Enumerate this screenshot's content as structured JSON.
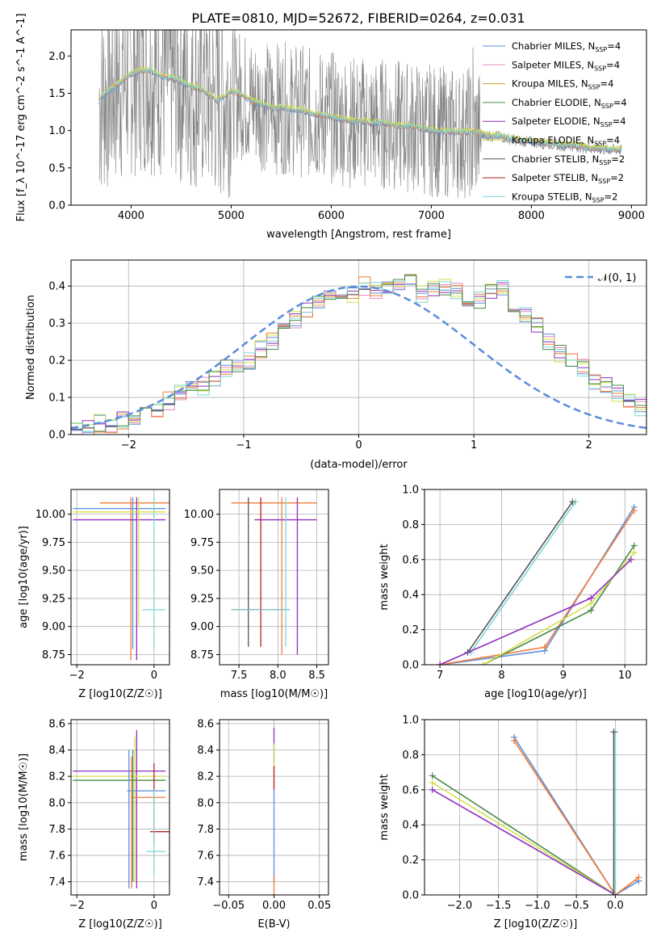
{
  "title": "PLATE=0810, MJD=52672, FIBERID=0264, z=0.031",
  "colors": {
    "Chabrier MILES": "#5b8ddb",
    "Salpeter MILES": "#e88ac0",
    "Kroupa MILES": "#c9a227",
    "Chabrier ELODIE": "#4a8a4a",
    "Salpeter ELODIE": "#8e2fbf",
    "Kroupa ELODIE": "#d4e04a",
    "Chabrier STELIB": "#555555",
    "Salpeter STELIB": "#b22222",
    "Kroupa STELIB": "#7fd6d6",
    "orange_overlay": "#f07c38",
    "data": "#808080",
    "gaussian": "#5b8ddb"
  },
  "chart_data": [
    {
      "id": "spectrum",
      "type": "line",
      "title": "PLATE=0810, MJD=52672, FIBERID=0264, z=0.031",
      "xlabel": "wavelength [Angstrom, rest frame]",
      "ylabel": "Flux [f_λ 10^-17 erg cm^-2 s^-1 A^-1]",
      "xlim": [
        3400,
        9150
      ],
      "ylim": [
        0,
        2.35
      ],
      "xticks": [
        4000,
        5000,
        6000,
        7000,
        8000,
        9000
      ],
      "yticks": [
        0.0,
        0.5,
        1.0,
        1.5,
        2.0
      ],
      "legend_position": "top-right",
      "legend": [
        {
          "label": "Chabrier MILES, N",
          "sub": "SSP",
          "tail": "=4",
          "color_key": "Chabrier MILES"
        },
        {
          "label": "Salpeter MILES, N",
          "sub": "SSP",
          "tail": "=4",
          "color_key": "Salpeter MILES"
        },
        {
          "label": "Kroupa MILES, N",
          "sub": "SSP",
          "tail": "=4",
          "color_key": "Kroupa MILES"
        },
        {
          "label": "Chabrier ELODIE, N",
          "sub": "SSP",
          "tail": "=4",
          "color_key": "Chabrier ELODIE"
        },
        {
          "label": "Salpeter ELODIE, N",
          "sub": "SSP",
          "tail": "=4",
          "color_key": "Salpeter ELODIE"
        },
        {
          "label": "Kroupa ELODIE, N",
          "sub": "SSP",
          "tail": "=4",
          "color_key": "Kroupa ELODIE"
        },
        {
          "label": "Chabrier STELIB, N",
          "sub": "SSP",
          "tail": "=2",
          "color_key": "Chabrier STELIB"
        },
        {
          "label": "Salpeter STELIB, N",
          "sub": "SSP",
          "tail": "=2",
          "color_key": "Salpeter STELIB"
        },
        {
          "label": "Kroupa STELIB, N",
          "sub": "SSP",
          "tail": "=2",
          "color_key": "Kroupa STELIB"
        }
      ],
      "model_continuum": {
        "x": [
          3680,
          3700,
          3800,
          3900,
          4000,
          4100,
          4200,
          4300,
          4400,
          4500,
          4600,
          4700,
          4800,
          4860,
          4900,
          5000,
          5100,
          5200,
          5300,
          5400,
          5500,
          5600,
          5700,
          5800,
          5900,
          6000,
          6100,
          6200,
          6300,
          6400,
          6500,
          6600,
          6700,
          6800,
          6900,
          7000,
          7100,
          7200,
          7300,
          7400,
          7500,
          7600,
          7700,
          7800,
          7900,
          8000,
          8100,
          8200,
          8300,
          8400,
          8500,
          8600,
          8700,
          8800,
          8900
        ],
        "y": [
          1.38,
          1.45,
          1.55,
          1.65,
          1.75,
          1.8,
          1.8,
          1.72,
          1.7,
          1.65,
          1.58,
          1.55,
          1.45,
          1.4,
          1.42,
          1.52,
          1.48,
          1.4,
          1.35,
          1.3,
          1.3,
          1.28,
          1.27,
          1.22,
          1.2,
          1.18,
          1.15,
          1.12,
          1.12,
          1.1,
          1.1,
          1.07,
          1.05,
          1.06,
          1.02,
          1.0,
          0.98,
          0.98,
          0.97,
          0.98,
          0.95,
          0.92,
          0.92,
          0.88,
          0.86,
          0.85,
          0.83,
          0.82,
          0.8,
          0.8,
          0.78,
          0.76,
          0.75,
          0.74,
          0.74
        ]
      }
    },
    {
      "id": "residuals",
      "type": "line",
      "xlabel": "(data-model)/error",
      "ylabel": "Normed distribution",
      "xlim": [
        -2.5,
        2.5
      ],
      "ylim": [
        0,
        0.47
      ],
      "xticks": [
        -2,
        -1,
        0,
        1,
        2
      ],
      "yticks": [
        0.0,
        0.1,
        0.2,
        0.3,
        0.4
      ],
      "legend_position": "top-right",
      "legend": [
        {
          "label": "𝒩(0, 1)",
          "color_key": "gaussian"
        }
      ],
      "bin_width": 0.1,
      "histogram_base": [
        0.02,
        0.02,
        0.03,
        0.03,
        0.04,
        0.04,
        0.05,
        0.07,
        0.09,
        0.11,
        0.12,
        0.13,
        0.15,
        0.18,
        0.19,
        0.2,
        0.23,
        0.25,
        0.28,
        0.31,
        0.33,
        0.35,
        0.37,
        0.37,
        0.38,
        0.4,
        0.39,
        0.4,
        0.41,
        0.42,
        0.38,
        0.39,
        0.4,
        0.39,
        0.37,
        0.36,
        0.39,
        0.4,
        0.34,
        0.32,
        0.29,
        0.25,
        0.22,
        0.2,
        0.18,
        0.14,
        0.13,
        0.11,
        0.09,
        0.07,
        0.05
      ]
    },
    {
      "id": "age-vs-Z",
      "type": "scatter",
      "xlabel": "Z [log10(Z/Z☉)]",
      "ylabel": "age  [log10(age/yr)]",
      "xlim": [
        -2.15,
        0.4
      ],
      "ylim": [
        8.66,
        10.22
      ],
      "xticks": [
        -2,
        0
      ],
      "yticks": [
        8.75,
        9.0,
        9.25,
        9.5,
        9.75,
        10.0
      ],
      "points": [
        {
          "color_key": "orange_overlay",
          "x": [
            -1.4,
            0.4
          ],
          "y": [
            10.1,
            10.1
          ],
          "vx": -0.6,
          "vy": [
            8.7,
            10.15
          ]
        },
        {
          "color_key": "Chabrier MILES",
          "x": [
            -2.1,
            0.3
          ],
          "y": [
            10.05,
            10.05
          ],
          "vx": -0.55,
          "vy": [
            8.8,
            10.15
          ]
        },
        {
          "color_key": "Salpeter ELODIE",
          "x": [
            -2.1,
            0.3
          ],
          "y": [
            9.95,
            9.95
          ],
          "vx": -0.45,
          "vy": [
            8.7,
            10.15
          ]
        },
        {
          "color_key": "Kroupa ELODIE",
          "x": [
            -2.1,
            0.3
          ],
          "y": [
            10.02,
            10.02
          ],
          "vx": -0.4,
          "vy": [
            9.0,
            10.15
          ]
        },
        {
          "color_key": "Kroupa STELIB",
          "x": [
            -0.3,
            0.3
          ],
          "y": [
            9.15,
            9.15
          ],
          "vx": 0.0,
          "vy": [
            8.8,
            10.15
          ]
        }
      ]
    },
    {
      "id": "age-vs-mass",
      "type": "scatter",
      "xlabel": "mass [log10(M/M☉)]",
      "ylabel": "",
      "xlim": [
        7.25,
        8.65
      ],
      "ylim": [
        8.66,
        10.22
      ],
      "xticks": [
        7.5,
        8.0,
        8.5
      ],
      "yticks": [
        8.75,
        9.0,
        9.25,
        9.5,
        9.75,
        10.0
      ],
      "points": [
        {
          "color_key": "orange_overlay",
          "x": [
            7.4,
            8.5
          ],
          "y": [
            10.1,
            10.1
          ],
          "vx": 8.05,
          "vy": [
            8.75,
            10.15
          ]
        },
        {
          "color_key": "Salpeter ELODIE",
          "x": [
            7.7,
            8.5
          ],
          "y": [
            9.95,
            9.95
          ],
          "vx": 8.25,
          "vy": [
            8.75,
            10.15
          ]
        },
        {
          "color_key": "Chabrier STELIB",
          "x": [
            7.4,
            8.15
          ],
          "y": [
            9.15,
            9.15
          ],
          "vx": 7.62,
          "vy": [
            8.82,
            10.15
          ]
        },
        {
          "color_key": "Salpeter STELIB",
          "x": [
            7.4,
            8.15
          ],
          "y": [
            9.15,
            9.15
          ],
          "vx": 7.78,
          "vy": [
            8.82,
            10.15
          ]
        },
        {
          "color_key": "Kroupa STELIB",
          "x": [
            7.4,
            8.15
          ],
          "y": [
            9.15,
            9.15
          ],
          "vx": 8.1,
          "vy": [
            8.82,
            10.15
          ]
        }
      ]
    },
    {
      "id": "weight-vs-age",
      "type": "line",
      "xlabel": "age  [log10(age/yr)]",
      "ylabel": "mass weight",
      "xlim": [
        6.75,
        10.35
      ],
      "ylim": [
        0,
        1.0
      ],
      "xticks": [
        7,
        8,
        9,
        10
      ],
      "yticks": [
        0.0,
        0.2,
        0.4,
        0.6,
        0.8,
        1.0
      ],
      "series": [
        {
          "color_key": "Kroupa STELIB",
          "x": [
            7.5,
            9.2
          ],
          "y": [
            0.07,
            0.93
          ]
        },
        {
          "color_key": "Chabrier STELIB",
          "x": [
            7.45,
            9.15
          ],
          "y": [
            0.07,
            0.93
          ]
        },
        {
          "color_key": "Chabrier MILES",
          "x": [
            7.0,
            8.7,
            10.15
          ],
          "y": [
            0.0,
            0.08,
            0.9
          ]
        },
        {
          "color_key": "orange_overlay",
          "x": [
            7.0,
            8.7,
            10.15
          ],
          "y": [
            0.0,
            0.1,
            0.88
          ]
        },
        {
          "color_key": "Chabrier ELODIE",
          "x": [
            7.7,
            9.45,
            10.15
          ],
          "y": [
            0.0,
            0.31,
            0.68
          ]
        },
        {
          "color_key": "Kroupa ELODIE",
          "x": [
            7.7,
            9.45,
            10.15
          ],
          "y": [
            0.0,
            0.35,
            0.64
          ]
        },
        {
          "color_key": "Salpeter ELODIE",
          "x": [
            7.0,
            9.45,
            10.1
          ],
          "y": [
            0.0,
            0.38,
            0.6
          ]
        }
      ]
    },
    {
      "id": "mass-vs-Z",
      "type": "scatter",
      "xlabel": "Z [log10(Z/Z☉)]",
      "ylabel": "mass [log10(M/M☉)]",
      "xlim": [
        -2.15,
        0.4
      ],
      "ylim": [
        7.3,
        8.63
      ],
      "xticks": [
        -2,
        0
      ],
      "yticks": [
        7.4,
        7.6,
        7.8,
        8.0,
        8.2,
        8.4,
        8.6
      ],
      "points": [
        {
          "color_key": "Salpeter ELODIE",
          "x": [
            -2.1,
            0.3
          ],
          "y": [
            8.24,
            8.24
          ],
          "vx": -0.45,
          "vy": [
            7.35,
            8.55
          ]
        },
        {
          "color_key": "Kroupa ELODIE",
          "x": [
            -2.1,
            0.3
          ],
          "y": [
            8.2,
            8.2
          ],
          "vx": -0.5,
          "vy": [
            7.4,
            8.5
          ]
        },
        {
          "color_key": "Chabrier ELODIE",
          "x": [
            -2.1,
            0.3
          ],
          "y": [
            8.17,
            8.17
          ],
          "vx": -0.55,
          "vy": [
            7.4,
            8.4
          ]
        },
        {
          "color_key": "Chabrier MILES",
          "x": [
            -0.7,
            0.3
          ],
          "y": [
            8.09,
            8.09
          ],
          "vx": -0.65,
          "vy": [
            7.35,
            8.4
          ]
        },
        {
          "color_key": "orange_overlay",
          "x": [
            -0.6,
            0.3
          ],
          "y": [
            8.04,
            8.04
          ],
          "vx": -0.58,
          "vy": [
            7.35,
            8.35
          ]
        },
        {
          "color_key": "Salpeter STELIB",
          "x": [
            -0.1,
            0.4
          ],
          "y": [
            7.78,
            7.78
          ],
          "vx": 0.0,
          "vy": [
            7.7,
            8.3
          ]
        },
        {
          "color_key": "Kroupa STELIB",
          "x": [
            -0.2,
            0.3
          ],
          "y": [
            7.63,
            7.63
          ],
          "vx": 0.0,
          "vy": [
            7.45,
            8.1
          ]
        }
      ]
    },
    {
      "id": "mass-vs-ebv",
      "type": "scatter",
      "xlabel": "E(B-V)",
      "ylabel": "",
      "xlim": [
        -0.06,
        0.06
      ],
      "ylim": [
        7.3,
        8.63
      ],
      "xticks": [
        -0.05,
        0.0,
        0.05
      ],
      "xtick_labels": [
        "−0.05",
        "0.00",
        "0.05"
      ],
      "yticks": [
        7.4,
        7.6,
        7.8,
        8.0,
        8.2,
        8.4,
        8.6
      ],
      "points": [
        {
          "color_key": "Salpeter ELODIE",
          "x": [
            0,
            0
          ],
          "y": [
            8.3,
            8.57
          ]
        },
        {
          "color_key": "Kroupa ELODIE",
          "x": [
            0,
            0
          ],
          "y": [
            8.1,
            8.45
          ]
        },
        {
          "color_key": "Salpeter STELIB",
          "x": [
            0,
            0
          ],
          "y": [
            8.1,
            8.28
          ]
        },
        {
          "color_key": "Chabrier MILES",
          "x": [
            0,
            0
          ],
          "y": [
            7.4,
            8.1
          ]
        },
        {
          "color_key": "orange_overlay",
          "x": [
            0,
            0
          ],
          "y": [
            7.3,
            7.45
          ]
        }
      ]
    },
    {
      "id": "weight-vs-Z",
      "type": "line",
      "xlabel": "Z [log10(Z/Z☉)]",
      "ylabel": "mass weight",
      "xlim": [
        -2.45,
        0.4
      ],
      "ylim": [
        0,
        1.0
      ],
      "xticks": [
        -2.0,
        -1.5,
        -1.0,
        -0.5,
        0.0
      ],
      "yticks": [
        0.0,
        0.2,
        0.4,
        0.6,
        0.8,
        1.0
      ],
      "series": [
        {
          "color_key": "Chabrier MILES",
          "x": [
            -1.3,
            0.0,
            0.3
          ],
          "y": [
            0.9,
            0.0,
            0.08
          ]
        },
        {
          "color_key": "orange_overlay",
          "x": [
            -1.3,
            0.0,
            0.3
          ],
          "y": [
            0.88,
            0.0,
            0.1
          ]
        },
        {
          "color_key": "Chabrier ELODIE",
          "x": [
            -2.35,
            0.0
          ],
          "y": [
            0.68,
            0.0
          ]
        },
        {
          "color_key": "Kroupa ELODIE",
          "x": [
            -2.35,
            0.0
          ],
          "y": [
            0.64,
            0.0
          ]
        },
        {
          "color_key": "Salpeter ELODIE",
          "x": [
            -2.35,
            0.0
          ],
          "y": [
            0.6,
            0.0
          ]
        },
        {
          "color_key": "Kroupa STELIB",
          "x": [
            0.0,
            0.0
          ],
          "y": [
            0.0,
            0.93
          ]
        },
        {
          "color_key": "Chabrier STELIB",
          "x": [
            -0.02,
            -0.02
          ],
          "y": [
            0.0,
            0.93
          ]
        }
      ]
    }
  ]
}
